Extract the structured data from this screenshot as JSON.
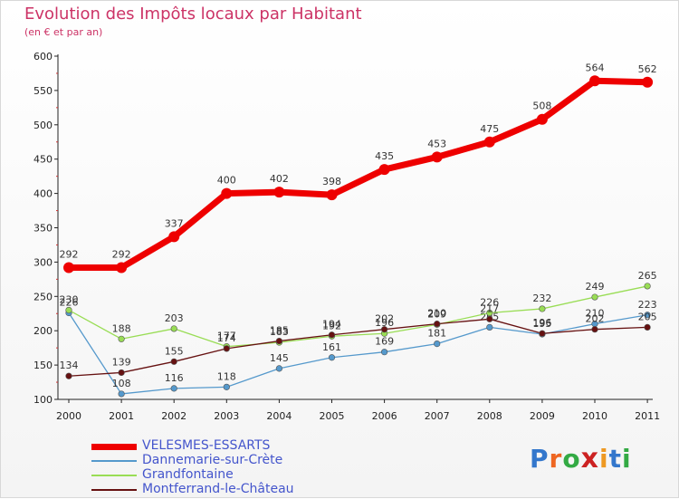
{
  "title": "Evolution des Impôts locaux par Habitant",
  "subtitle": "(en € et par an)",
  "logo_text": "Proxiti",
  "chart_data": {
    "type": "line",
    "x": [
      "2000",
      "2001",
      "2002",
      "2003",
      "2004",
      "2005",
      "2006",
      "2007",
      "2008",
      "2009",
      "2010",
      "2011"
    ],
    "ylim": [
      100,
      600
    ],
    "yticks": [
      100,
      150,
      200,
      250,
      300,
      350,
      400,
      450,
      500,
      550,
      600
    ],
    "grid": false,
    "legend_position": "bottom-left",
    "series": [
      {
        "name": "VELESMES-ESSARTS",
        "color": "#ee0000",
        "values": [
          292,
          292,
          337,
          400,
          402,
          398,
          435,
          453,
          475,
          508,
          564,
          562
        ]
      },
      {
        "name": "Dannemarie-sur-Crète",
        "color": "#5599cc",
        "values": [
          226,
          108,
          116,
          118,
          145,
          161,
          169,
          181,
          205,
          195,
          210,
          223
        ]
      },
      {
        "name": "Grandfontaine",
        "color": "#99dd55",
        "values": [
          230,
          188,
          203,
          177,
          183,
          192,
          196,
          209,
          226,
          232,
          249,
          265
        ]
      },
      {
        "name": "Montferrand-le-Château",
        "color": "#661111",
        "values": [
          134,
          139,
          155,
          174,
          185,
          194,
          202,
          210,
          217,
          196,
          202,
          205
        ]
      }
    ]
  }
}
